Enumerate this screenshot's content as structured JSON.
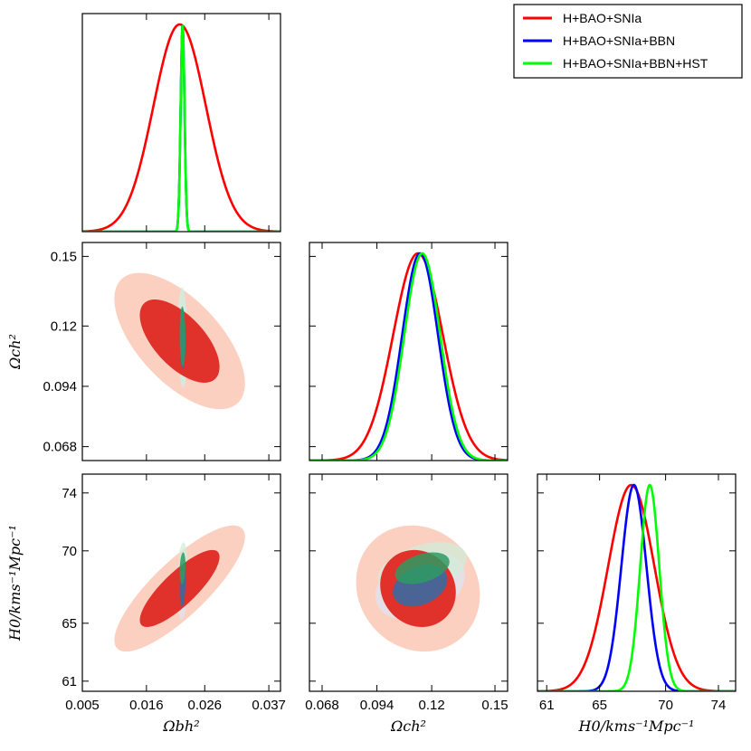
{
  "chart_data": {
    "type": "triangle-plot",
    "legend": {
      "placement": "top-right",
      "entries": [
        {
          "label": "H+BAO+SNIa",
          "color": "#ff0000"
        },
        {
          "label": "H+BAO+SNIa+BBN",
          "color": "#0000ff"
        },
        {
          "label": "H+BAO+SNIa+BBN+HST",
          "color": "#00ff00"
        }
      ]
    },
    "parameters": [
      {
        "id": "obh2",
        "axis_label": "Ωbh²",
        "range": [
          0.005,
          0.039
        ],
        "ticks": [
          "0.005",
          "0.016",
          "0.026",
          "0.037"
        ]
      },
      {
        "id": "och2",
        "axis_label": "Ωch²",
        "range": [
          0.062,
          0.156
        ],
        "ticks": [
          "0.068",
          "0.094",
          "0.12",
          "0.15"
        ]
      },
      {
        "id": "h0",
        "axis_label": "H0/kms⁻¹Mpc⁻¹",
        "range": [
          60.3,
          75.3
        ],
        "ticks": [
          "61",
          "65",
          "70",
          "74"
        ]
      }
    ],
    "series": [
      {
        "name": "H+BAO+SNIa",
        "color": "#ff0000",
        "fill_1sigma": "#e0312a",
        "fill_2sigma": "#fcd0c0",
        "obh2": {
          "mean": 0.0217,
          "sigma": 0.0045
        },
        "och2": {
          "mean": 0.1135,
          "sigma": 0.0118
        },
        "h0": {
          "mean": 67.4,
          "sigma": 1.75
        },
        "corr": {
          "obh2_och2": -0.62,
          "obh2_h0": 0.82,
          "och2_h0": -0.1
        }
      },
      {
        "name": "H+BAO+SNIa+BBN",
        "color": "#0000ff",
        "fill_1sigma": "#2f6ea8",
        "fill_2sigma": "#dce6f2",
        "obh2": {
          "mean": 0.0222,
          "sigma": 0.00033
        },
        "och2": {
          "mean": 0.1145,
          "sigma": 0.0085
        },
        "h0": {
          "mean": 67.6,
          "sigma": 0.95
        },
        "corr": {
          "obh2_och2": -0.1,
          "obh2_h0": 0.2,
          "och2_h0": 0.3
        }
      },
      {
        "name": "H+BAO+SNIa+BBN+HST",
        "color": "#00ff00",
        "fill_1sigma": "#2e9a62",
        "fill_2sigma": "#d2ecd8",
        "obh2": {
          "mean": 0.0222,
          "sigma": 0.00033
        },
        "och2": {
          "mean": 0.1155,
          "sigma": 0.0085
        },
        "h0": {
          "mean": 68.8,
          "sigma": 0.72
        },
        "corr": {
          "obh2_och2": -0.1,
          "obh2_h0": 0.2,
          "och2_h0": 0.4
        }
      }
    ]
  }
}
